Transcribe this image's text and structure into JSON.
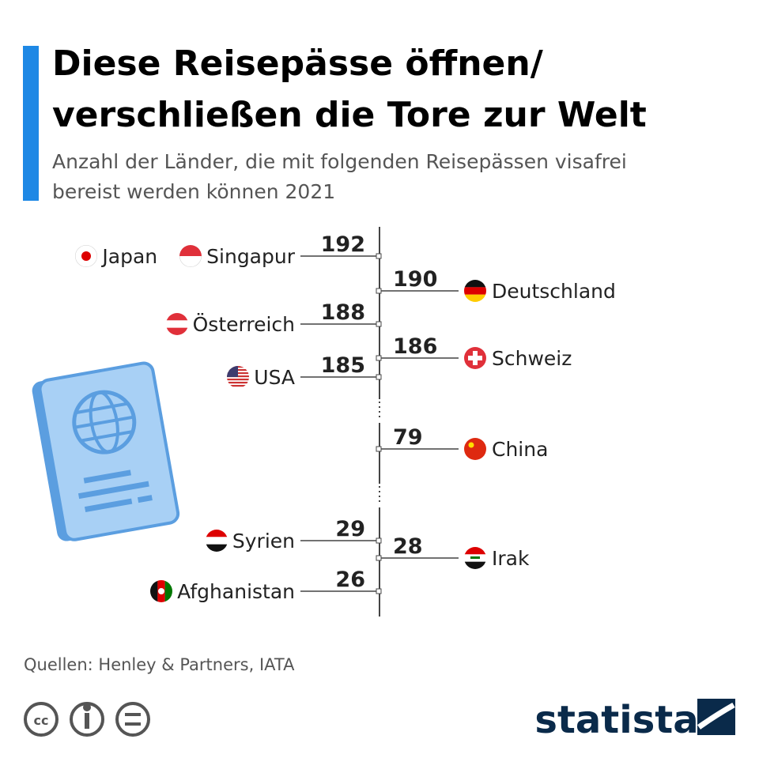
{
  "header": {
    "title": [
      "Diese Reisepässe öffnen/",
      "verschließen die Tore zur Welt"
    ],
    "subtitle": [
      "Anzahl der Länder, die mit folgenden Reisepässen visafrei",
      "bereist werden können 2021"
    ]
  },
  "entries": [
    {
      "countries": [
        "Singapur",
        "Japan"
      ],
      "value": 192
    },
    {
      "countries": [
        "Deutschland"
      ],
      "value": 190
    },
    {
      "countries": [
        "Österreich"
      ],
      "value": 188
    },
    {
      "countries": [
        "Schweiz"
      ],
      "value": 186
    },
    {
      "countries": [
        "USA"
      ],
      "value": 185
    },
    {
      "countries": [
        "China"
      ],
      "value": 79
    },
    {
      "countries": [
        "Syrien"
      ],
      "value": 29
    },
    {
      "countries": [
        "Irak"
      ],
      "value": 28
    },
    {
      "countries": [
        "Afghanistan"
      ],
      "value": 26
    }
  ],
  "footer": {
    "source": "Quellen: Henley & Partners, IATA",
    "brand": "statista"
  }
}
